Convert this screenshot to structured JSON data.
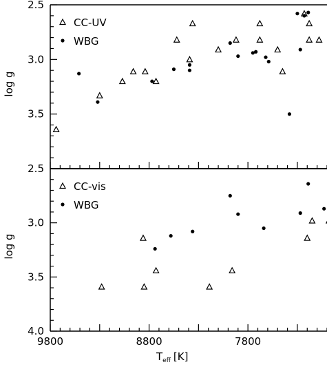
{
  "chart_data": [
    {
      "type": "scatter",
      "panel": "top",
      "xlabel_main": "T",
      "xlabel_sub": "eff",
      "xlabel_unit": "[K]",
      "ylabel": "log g",
      "xlim": [
        9800,
        7000
      ],
      "ylim": [
        2.5,
        4.0
      ],
      "y_tick_labels": [
        "2.5",
        "3.0",
        "3.5"
      ],
      "legend_placement": "top-left",
      "series": [
        {
          "name": "CC-UV",
          "marker": "triangle-open",
          "points": [
            [
              9740,
              3.64
            ],
            [
              9300,
              3.33
            ],
            [
              9070,
              3.2
            ],
            [
              8960,
              3.11
            ],
            [
              8840,
              3.11
            ],
            [
              8730,
              3.2
            ],
            [
              8520,
              2.82
            ],
            [
              8360,
              2.67
            ],
            [
              8390,
              3.0
            ],
            [
              8100,
              2.91
            ],
            [
              7920,
              2.82
            ],
            [
              7680,
              2.67
            ],
            [
              7680,
              2.82
            ],
            [
              7500,
              2.91
            ],
            [
              7450,
              3.11
            ],
            [
              7230,
              2.58
            ],
            [
              7180,
              2.67
            ],
            [
              7180,
              2.82
            ],
            [
              7080,
              2.82
            ]
          ]
        },
        {
          "name": "WBG",
          "marker": "filled-circle",
          "points": [
            [
              9510,
              3.13
            ],
            [
              9320,
              3.39
            ],
            [
              8770,
              3.2
            ],
            [
              8550,
              3.09
            ],
            [
              8390,
              3.05
            ],
            [
              8390,
              3.1
            ],
            [
              7980,
              2.85
            ],
            [
              7900,
              2.97
            ],
            [
              7750,
              2.94
            ],
            [
              7720,
              2.93
            ],
            [
              7620,
              2.98
            ],
            [
              7590,
              3.02
            ],
            [
              7380,
              3.5
            ],
            [
              7300,
              2.58
            ],
            [
              7270,
              2.91
            ],
            [
              7230,
              2.6
            ],
            [
              7190,
              2.57
            ],
            [
              6980,
              2.9
            ]
          ]
        }
      ]
    },
    {
      "type": "scatter",
      "panel": "bottom",
      "xlabel_main": "T",
      "xlabel_sub": "eff",
      "xlabel_unit": "[K]",
      "ylabel": "log g",
      "xlim": [
        9800,
        7000
      ],
      "ylim": [
        2.5,
        4.0
      ],
      "x_tick_values": [
        9800,
        8800,
        7800
      ],
      "x_tick_labels": [
        "9800",
        "8800",
        "7800"
      ],
      "y_tick_labels": [
        "2.5",
        "3.0",
        "3.5",
        "4.0"
      ],
      "legend_placement": "top-left",
      "series": [
        {
          "name": "CC-vis",
          "marker": "triangle-open",
          "points": [
            [
              9280,
              3.59
            ],
            [
              8850,
              3.59
            ],
            [
              8730,
              3.44
            ],
            [
              8860,
              3.14
            ],
            [
              8190,
              3.59
            ],
            [
              7960,
              3.44
            ],
            [
              7200,
              3.14
            ],
            [
              7150,
              2.98
            ],
            [
              6980,
              2.98
            ]
          ]
        },
        {
          "name": "WBG",
          "marker": "filled-circle",
          "points": [
            [
              8740,
              3.24
            ],
            [
              8580,
              3.12
            ],
            [
              8360,
              3.08
            ],
            [
              7980,
              2.75
            ],
            [
              7900,
              2.92
            ],
            [
              7640,
              3.05
            ],
            [
              7270,
              2.91
            ],
            [
              7190,
              2.64
            ],
            [
              7030,
              2.87
            ]
          ]
        }
      ]
    }
  ]
}
